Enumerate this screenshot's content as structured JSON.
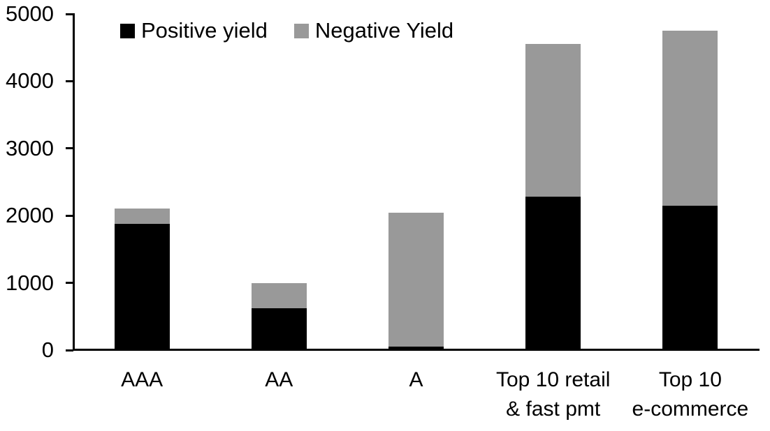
{
  "chart_data": {
    "type": "bar",
    "stacked": true,
    "grid": false,
    "legend_position": "top",
    "categories": [
      "AAA",
      "AA",
      "A",
      "Top 10 retail & fast pmt",
      "Top 10 e-commerce"
    ],
    "category_label_lines": [
      [
        "AAA"
      ],
      [
        "AA"
      ],
      [
        "A"
      ],
      [
        "Top 10 retail",
        "& fast pmt"
      ],
      [
        "Top 10",
        "e-commerce"
      ]
    ],
    "series": [
      {
        "name": "Positive yield",
        "color": "#000000",
        "values": [
          1880,
          620,
          50,
          2280,
          2150
        ]
      },
      {
        "name": "Negative Yield",
        "color": "#999999",
        "values": [
          230,
          380,
          1990,
          2270,
          2600
        ]
      }
    ],
    "totals": [
      2110,
      1000,
      2040,
      4550,
      4750
    ],
    "ylim": [
      0,
      5000
    ],
    "yticks": [
      0,
      1000,
      2000,
      3000,
      4000,
      5000
    ],
    "ytick_labels": [
      "0",
      "1000",
      "2000",
      "3000",
      "4000",
      "5000"
    ],
    "xlabel": "",
    "ylabel": "",
    "title": "",
    "axis_color": "#000000",
    "background_color": "#ffffff"
  }
}
